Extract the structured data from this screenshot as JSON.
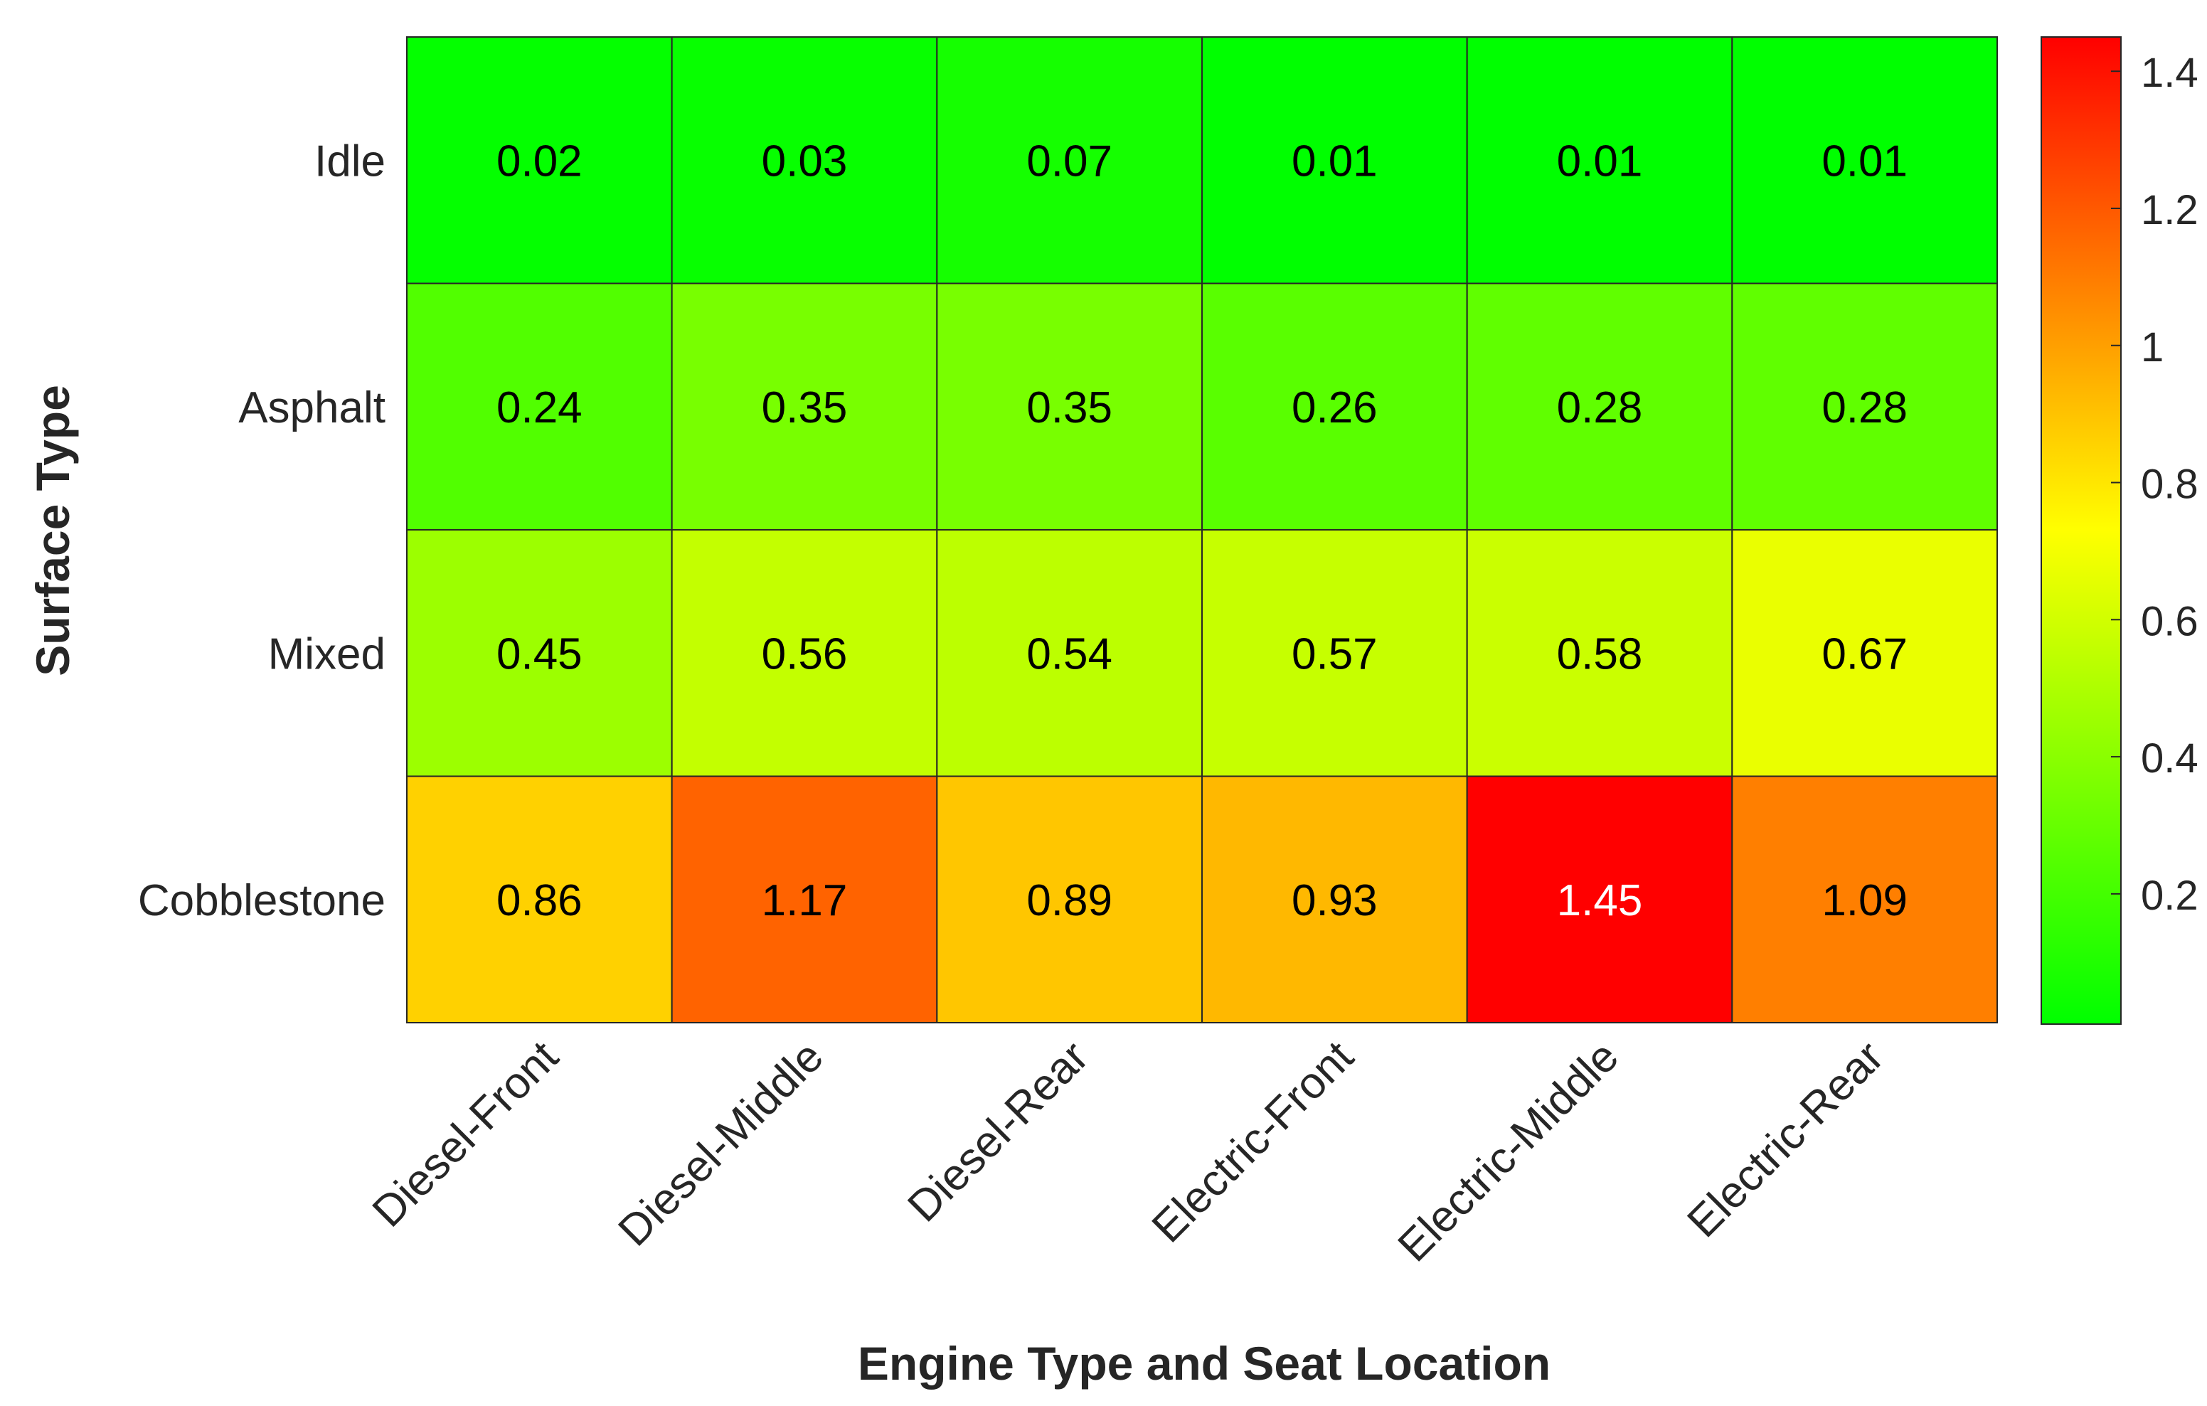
{
  "chart_data": {
    "type": "heatmap",
    "title": "",
    "xlabel": "Engine Type and Seat Location",
    "ylabel": "Surface Type",
    "x_categories": [
      "Diesel-Front",
      "Diesel-Middle",
      "Diesel-Rear",
      "Electric-Front",
      "Electric-Middle",
      "Electric-Rear"
    ],
    "y_categories": [
      "Idle",
      "Asphalt",
      "Mixed",
      "Cobblestone"
    ],
    "values": [
      [
        0.02,
        0.03,
        0.07,
        0.01,
        0.01,
        0.01
      ],
      [
        0.24,
        0.35,
        0.35,
        0.26,
        0.28,
        0.28
      ],
      [
        0.45,
        0.56,
        0.54,
        0.57,
        0.58,
        0.67
      ],
      [
        0.86,
        1.17,
        0.89,
        0.93,
        1.45,
        1.09
      ]
    ],
    "value_labels": [
      [
        "0.02",
        "0.03",
        "0.07",
        "0.01",
        "0.01",
        "0.01"
      ],
      [
        "0.24",
        "0.35",
        "0.35",
        "0.26",
        "0.28",
        "0.28"
      ],
      [
        "0.45",
        "0.56",
        "0.54",
        "0.57",
        "0.58",
        "0.67"
      ],
      [
        "0.86",
        "1.17",
        "0.89",
        "0.93",
        "1.45",
        "1.09"
      ]
    ],
    "colorbar": {
      "range": [
        0.01,
        1.45
      ],
      "ticks": [
        0.2,
        0.4,
        0.6,
        0.8,
        1,
        1.2,
        1.4
      ],
      "tick_labels": [
        "0.2",
        "0.4",
        "0.6",
        "0.8",
        "1",
        "1.2",
        "1.4"
      ],
      "colormap": [
        "#00ff00",
        "#ffff00",
        "#ff0000"
      ],
      "placement": "right"
    },
    "grid": false,
    "label_color_dark": "#000000",
    "label_color_light": "#ffffff"
  }
}
